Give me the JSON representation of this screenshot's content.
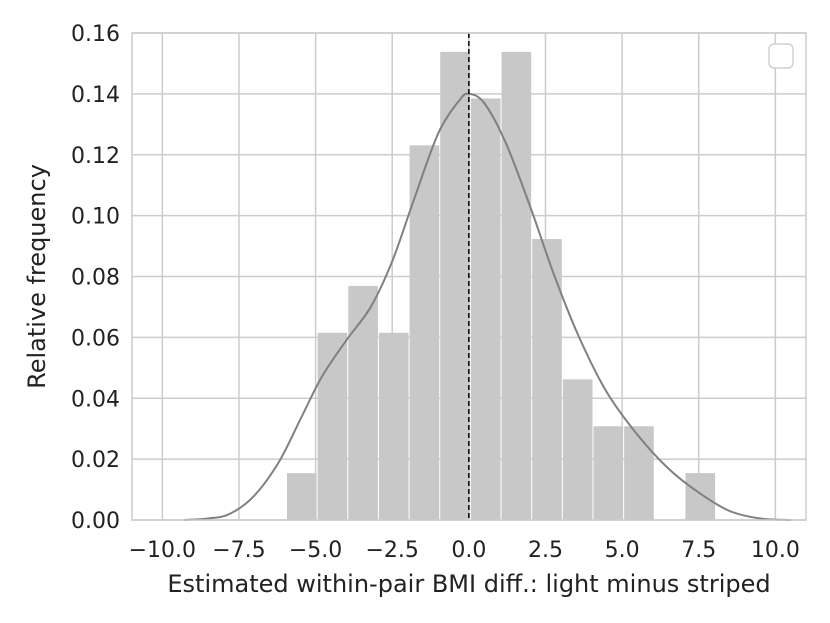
{
  "chart_data": {
    "type": "bar",
    "title": "",
    "xlabel": "Estimated within-pair BMI diff.: light minus striped",
    "ylabel": "Relative frequency",
    "xlim": [
      -10.99,
      11.0
    ],
    "ylim": [
      0.0,
      0.16
    ],
    "xticks": [
      -10.0,
      -7.5,
      -5.0,
      -2.5,
      0.0,
      2.5,
      5.0,
      7.5,
      10.0
    ],
    "xtick_labels": [
      "−10.0",
      "−7.5",
      "−5.0",
      "−2.5",
      "0.0",
      "2.5",
      "5.0",
      "7.5",
      "10.0"
    ],
    "yticks": [
      0.0,
      0.02,
      0.04,
      0.06,
      0.08,
      0.1,
      0.12,
      0.14,
      0.16
    ],
    "ytick_labels": [
      "0.00",
      "0.02",
      "0.04",
      "0.06",
      "0.08",
      "0.10",
      "0.12",
      "0.14",
      "0.16"
    ],
    "grid": true,
    "legend": {
      "position": "top-right",
      "entries": []
    },
    "histogram": {
      "bin_edges": [
        -5.95,
        -4.95,
        -3.95,
        -2.95,
        -1.95,
        -0.95,
        0.05,
        1.05,
        2.05,
        3.05,
        4.05,
        5.05,
        6.05,
        7.05,
        8.05
      ],
      "values": [
        0.0154,
        0.0615,
        0.0769,
        0.0615,
        0.1231,
        0.1538,
        0.1385,
        0.1538,
        0.0923,
        0.0462,
        0.0308,
        0.0308,
        0.0,
        0.0154
      ]
    },
    "kde": {
      "x": [
        -9.3,
        -8.5,
        -7.8,
        -7.0,
        -6.2,
        -5.5,
        -4.8,
        -4.0,
        -3.2,
        -2.5,
        -1.8,
        -1.0,
        -0.3,
        0.0,
        0.5,
        1.2,
        2.0,
        2.8,
        3.6,
        4.5,
        5.5,
        6.5,
        7.5,
        8.5,
        9.5,
        10.5
      ],
      "y": [
        0.0,
        0.0005,
        0.002,
        0.008,
        0.019,
        0.033,
        0.047,
        0.059,
        0.07,
        0.085,
        0.105,
        0.127,
        0.138,
        0.14,
        0.137,
        0.124,
        0.103,
        0.08,
        0.06,
        0.042,
        0.028,
        0.017,
        0.009,
        0.003,
        0.0005,
        0.0
      ]
    },
    "reference_line": {
      "x": 0.0,
      "style": "dashed"
    },
    "colors": {
      "bars": "#c8c8c8",
      "kde": "#808080",
      "reference_line": "#000000",
      "grid": "#cccccc",
      "frame": "#cccccc",
      "text": "#222222"
    }
  }
}
